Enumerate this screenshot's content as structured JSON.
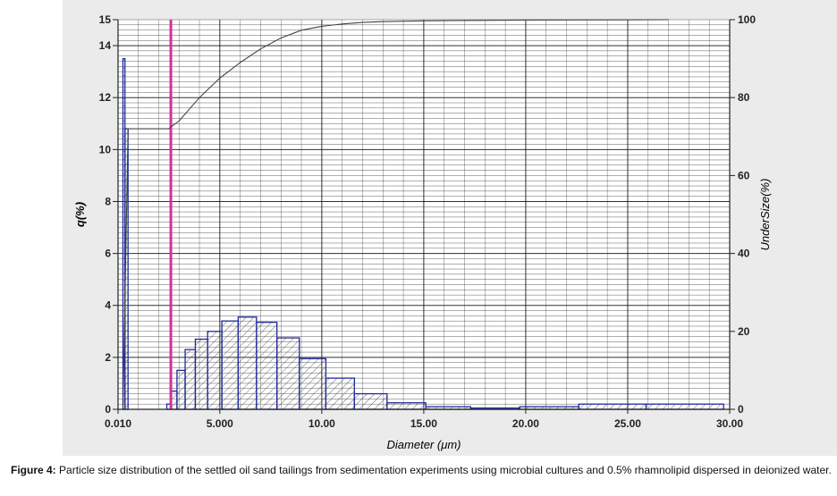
{
  "caption": {
    "label": "Figure 4:",
    "text": "Particle size distribution of the settled oil sand tailings from sedimentation experiments using microbial cultures and 0.5% rhamnolipid dispersed in deionized water."
  },
  "chart_data": {
    "type": "bar",
    "xlabel": "Diameter (μm)",
    "ylabel": "q(%)",
    "y2label": "UnderSize(%)",
    "xlim": [
      0.01,
      30.0
    ],
    "ylim": [
      0,
      15
    ],
    "y2lim": [
      0,
      100
    ],
    "x_ticks": [
      "0.010",
      "5.000",
      "10.00",
      "15.00",
      "20.00",
      "25.00",
      "30.00"
    ],
    "y_ticks": [
      "0",
      "2",
      "4",
      "6",
      "8",
      "10",
      "12",
      "14",
      "15"
    ],
    "y2_ticks": [
      "0",
      "20",
      "40",
      "60",
      "80",
      "100"
    ],
    "grid": true,
    "marker_line_x": 2.6,
    "colors": {
      "bars": "#1f2a9a",
      "marker_line": "#d3309b",
      "cumulative": "#444444",
      "grid": "#1a1a1a"
    },
    "bars": [
      {
        "x0": 0.25,
        "x1": 0.35,
        "q": 13.5
      },
      {
        "x0": 0.35,
        "x1": 0.5,
        "q": 10.8
      },
      {
        "x0": 2.4,
        "x1": 2.6,
        "q": 0.2
      },
      {
        "x0": 2.6,
        "x1": 2.9,
        "q": 0.7
      },
      {
        "x0": 2.9,
        "x1": 3.3,
        "q": 1.5
      },
      {
        "x0": 3.3,
        "x1": 3.8,
        "q": 2.3
      },
      {
        "x0": 3.8,
        "x1": 4.4,
        "q": 2.7
      },
      {
        "x0": 4.4,
        "x1": 5.1,
        "q": 3.0
      },
      {
        "x0": 5.1,
        "x1": 5.9,
        "q": 3.4
      },
      {
        "x0": 5.9,
        "x1": 6.8,
        "q": 3.55
      },
      {
        "x0": 6.8,
        "x1": 7.8,
        "q": 3.35
      },
      {
        "x0": 7.8,
        "x1": 8.9,
        "q": 2.75
      },
      {
        "x0": 8.9,
        "x1": 10.2,
        "q": 1.95
      },
      {
        "x0": 10.2,
        "x1": 11.6,
        "q": 1.2
      },
      {
        "x0": 11.6,
        "x1": 13.2,
        "q": 0.6
      },
      {
        "x0": 13.2,
        "x1": 15.1,
        "q": 0.25
      },
      {
        "x0": 15.1,
        "x1": 17.3,
        "q": 0.1
      },
      {
        "x0": 17.3,
        "x1": 19.7,
        "q": 0.05
      },
      {
        "x0": 19.7,
        "x1": 22.6,
        "q": 0.1
      },
      {
        "x0": 22.6,
        "x1": 25.9,
        "q": 0.2
      },
      {
        "x0": 25.9,
        "x1": 29.7,
        "q": 0.2
      }
    ],
    "undersize": {
      "x": [
        0.25,
        0.5,
        2.5,
        2.6,
        3.0,
        3.5,
        4.0,
        5.0,
        6.0,
        7.0,
        8.0,
        9.0,
        10.0,
        11.0,
        12.0,
        13.0,
        15.0,
        17.0,
        20.0,
        25.0,
        27.0
      ],
      "y": [
        0,
        72,
        72,
        72.5,
        74,
        77,
        80,
        85,
        89,
        92.5,
        95.3,
        97.3,
        98.3,
        98.9,
        99.3,
        99.5,
        99.7,
        99.8,
        99.9,
        99.95,
        100
      ]
    }
  }
}
